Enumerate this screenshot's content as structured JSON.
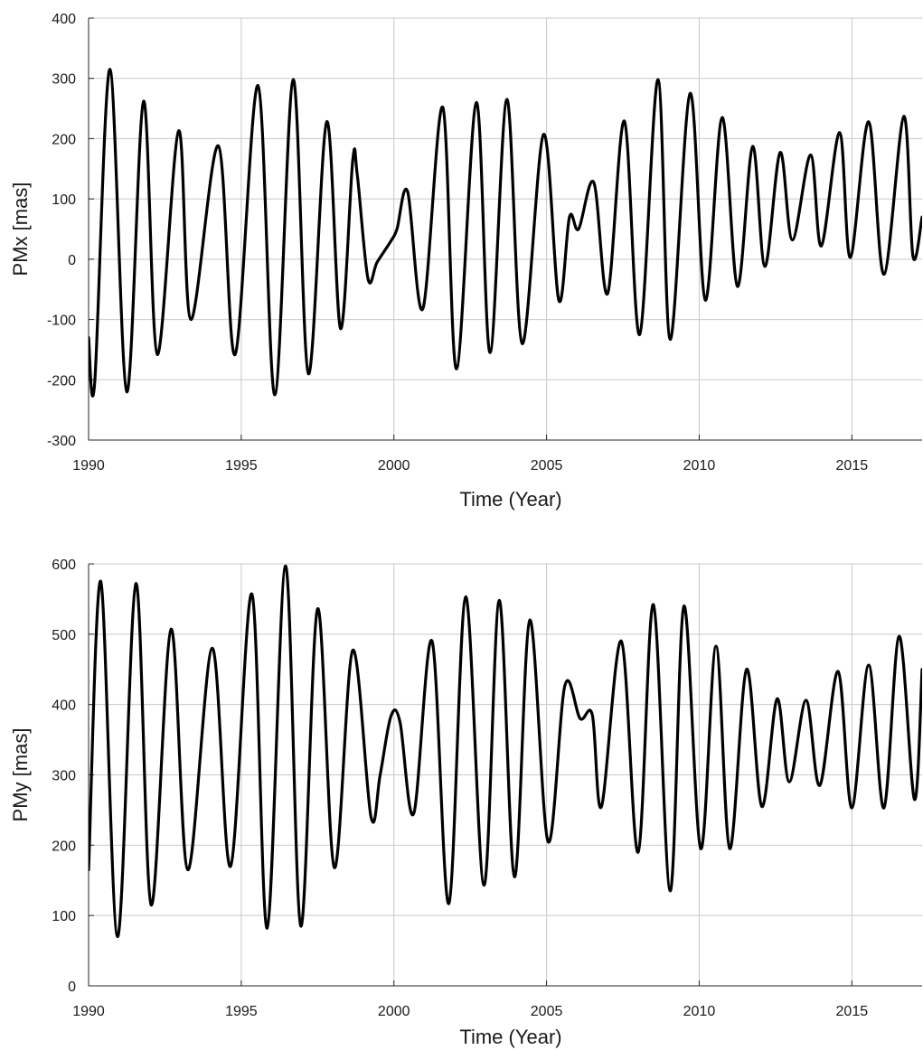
{
  "colors": {
    "series": "#000000",
    "grid": "#c8c8c8",
    "axis": "#262626"
  },
  "chart_data": [
    {
      "type": "line",
      "xlabel": "Time (Year)",
      "ylabel": "PMx [mas]",
      "xlim": [
        1990,
        2017.3
      ],
      "ylim": [
        -300,
        400
      ],
      "x_ticks": [
        1990,
        1995,
        2000,
        2005,
        2010,
        2015
      ],
      "x_tick_labels": [
        "1990",
        "1995",
        "2000",
        "2005",
        "2010",
        "2015"
      ],
      "y_ticks": [
        -300,
        -200,
        -100,
        0,
        100,
        200,
        300,
        400
      ],
      "y_tick_labels": [
        "-300",
        "-200",
        "-100",
        "0",
        "100",
        "200",
        "300",
        "400"
      ],
      "grid": true,
      "series": [
        {
          "x": [
            1990.0,
            1990.2,
            1990.7,
            1991.25,
            1991.8,
            1992.25,
            1992.95,
            1993.35,
            1994.25,
            1994.8,
            1995.55,
            1996.1,
            1996.7,
            1997.2,
            1997.8,
            1998.25,
            1998.65,
            1998.8,
            1999.15,
            1999.45,
            1999.9,
            2000.1,
            2000.45,
            2000.95,
            2001.6,
            2002.05,
            2002.7,
            2003.15,
            2003.7,
            2004.2,
            2004.9,
            2005.4,
            2005.75,
            2006.05,
            2006.55,
            2007.0,
            2007.55,
            2008.05,
            2008.65,
            2009.05,
            2009.7,
            2010.2,
            2010.75,
            2011.25,
            2011.75,
            2012.15,
            2012.65,
            2013.05,
            2013.65,
            2014.0,
            2014.6,
            2014.95,
            2015.55,
            2016.05,
            2016.7,
            2017.0,
            2017.3
          ],
          "y": [
            -130,
            -205,
            315,
            -220,
            262,
            -158,
            213,
            -100,
            188,
            -158,
            288,
            -225,
            298,
            -190,
            228,
            -115,
            163,
            140,
            -32,
            -5,
            30,
            50,
            112,
            -82,
            252,
            -182,
            260,
            -155,
            265,
            -140,
            207,
            -68,
            70,
            50,
            127,
            -57,
            229,
            -125,
            298,
            -133,
            275,
            -68,
            235,
            -45,
            187,
            -12,
            177,
            32,
            173,
            22,
            210,
            3,
            228,
            -25,
            237,
            5,
            70
          ]
        }
      ]
    },
    {
      "type": "line",
      "xlabel": "Time (Year)",
      "ylabel": "PMy [mas]",
      "xlim": [
        1990,
        2017.3
      ],
      "ylim": [
        0,
        600
      ],
      "x_ticks": [
        1990,
        1995,
        2000,
        2005,
        2010,
        2015
      ],
      "x_tick_labels": [
        "1990",
        "1995",
        "2000",
        "2005",
        "2010",
        "2015"
      ],
      "y_ticks": [
        0,
        100,
        200,
        300,
        400,
        500,
        600
      ],
      "y_tick_labels": [
        "0",
        "100",
        "200",
        "300",
        "400",
        "500",
        "600"
      ],
      "grid": true,
      "series": [
        {
          "x": [
            1990.0,
            1990.4,
            1990.95,
            1991.55,
            1992.05,
            1992.7,
            1993.25,
            1994.05,
            1994.65,
            1995.35,
            1995.85,
            1996.45,
            1996.95,
            1997.5,
            1998.05,
            1998.65,
            1999.25,
            1999.55,
            1999.9,
            2000.2,
            2000.65,
            2001.25,
            2001.8,
            2002.35,
            2002.95,
            2003.45,
            2003.95,
            2004.45,
            2005.05,
            2005.6,
            2006.1,
            2006.5,
            2006.8,
            2007.45,
            2008.0,
            2008.5,
            2009.05,
            2009.5,
            2010.05,
            2010.55,
            2011.0,
            2011.55,
            2012.05,
            2012.55,
            2012.95,
            2013.5,
            2013.95,
            2014.55,
            2015.0,
            2015.55,
            2016.05,
            2016.55,
            2017.05,
            2017.3
          ],
          "y": [
            165,
            575,
            70,
            572,
            115,
            507,
            165,
            480,
            170,
            557,
            82,
            597,
            85,
            536,
            168,
            477,
            240,
            300,
            383,
            375,
            245,
            490,
            117,
            553,
            143,
            548,
            155,
            520,
            205,
            427,
            380,
            385,
            255,
            490,
            190,
            542,
            135,
            540,
            195,
            483,
            195,
            450,
            255,
            408,
            290,
            406,
            285,
            447,
            253,
            456,
            253,
            497,
            265,
            450
          ]
        }
      ]
    }
  ]
}
